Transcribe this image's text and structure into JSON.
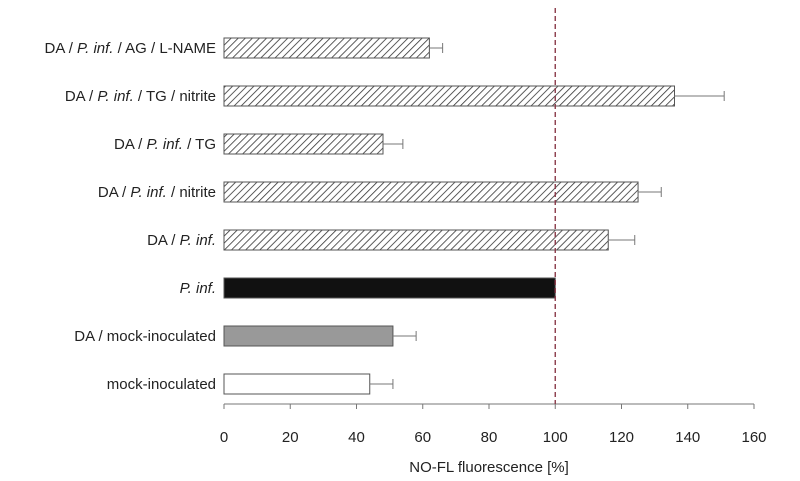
{
  "chart_data": {
    "type": "bar",
    "orientation": "horizontal",
    "xlabel": "NO-FL fluorescence [%]",
    "ylabel": "",
    "xlim": [
      0,
      160
    ],
    "xticks": [
      0,
      20,
      40,
      60,
      80,
      100,
      120,
      140,
      160
    ],
    "reference_line": {
      "value": 100,
      "style": "dashed",
      "color": "#8b3a4a"
    },
    "grid": false,
    "legend": "none",
    "categories": [
      {
        "parts": [
          {
            "text": "DA / ",
            "italic": false
          },
          {
            "text": "P. inf.",
            "italic": true
          },
          {
            "text": " / AG / L-NAME",
            "italic": false
          }
        ]
      },
      {
        "parts": [
          {
            "text": "DA / ",
            "italic": false
          },
          {
            "text": "P. inf.",
            "italic": true
          },
          {
            "text": " / TG / nitrite",
            "italic": false
          }
        ]
      },
      {
        "parts": [
          {
            "text": "DA / ",
            "italic": false
          },
          {
            "text": "P. inf.",
            "italic": true
          },
          {
            "text": " / TG",
            "italic": false
          }
        ]
      },
      {
        "parts": [
          {
            "text": "DA / ",
            "italic": false
          },
          {
            "text": "P. inf.",
            "italic": true
          },
          {
            "text": " / nitrite",
            "italic": false
          }
        ]
      },
      {
        "parts": [
          {
            "text": "DA / ",
            "italic": false
          },
          {
            "text": "P. inf.",
            "italic": true
          }
        ]
      },
      {
        "parts": [
          {
            "text": "P. inf.",
            "italic": true
          }
        ]
      },
      {
        "parts": [
          {
            "text": "DA / mock-inoculated",
            "italic": false
          }
        ]
      },
      {
        "parts": [
          {
            "text": "mock-inoculated",
            "italic": false
          }
        ]
      }
    ],
    "values": [
      62,
      136,
      48,
      125,
      116,
      100,
      51,
      44
    ],
    "errors": [
      4,
      15,
      6,
      7,
      8,
      0,
      7,
      7
    ],
    "fills": [
      "hatch",
      "hatch",
      "hatch",
      "hatch",
      "hatch",
      "solid-black",
      "solid-gray",
      "white"
    ],
    "colors": {
      "black": "#111111",
      "gray": "#999999",
      "white": "#ffffff",
      "hatch": "#333333",
      "axis": "#777777"
    }
  }
}
